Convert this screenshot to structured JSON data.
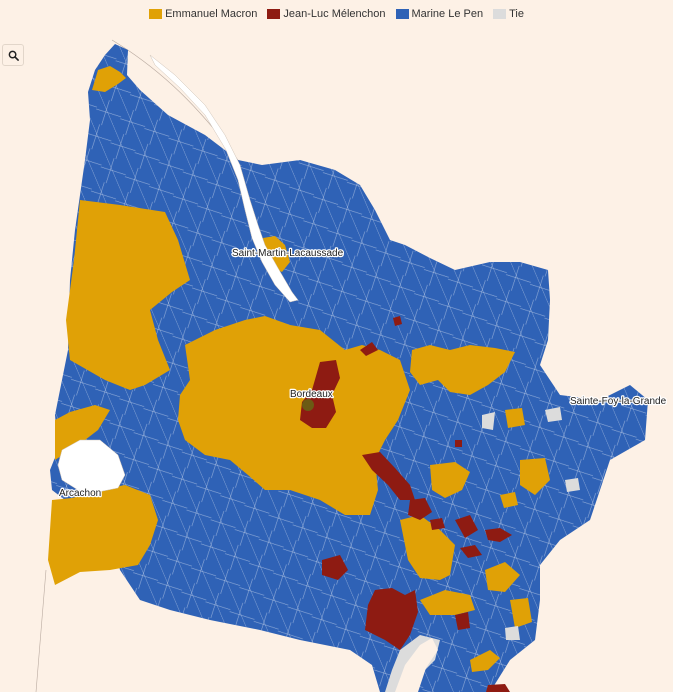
{
  "legend": {
    "items": [
      {
        "label": "Emmanuel Macron",
        "color": "#e0a106"
      },
      {
        "label": "Jean-Luc Mélenchon",
        "color": "#8e1b12"
      },
      {
        "label": "Marine Le Pen",
        "color": "#2f62b6"
      },
      {
        "label": "Tie",
        "color": "#dcdcdc"
      }
    ]
  },
  "search": {
    "icon": "search-icon"
  },
  "cities": {
    "saint_martin": "Saint-Martin-Lacaussade",
    "bordeaux": "Bordeaux",
    "sainte_foy": "Sainte-Foy-la-Grande",
    "arcachon": "Arcachon"
  },
  "colors": {
    "macron": "#e0a106",
    "melenchon": "#8e1b12",
    "lepen": "#2f62b6",
    "tie": "#dcdcdc",
    "background": "#fdf1e6",
    "water": "#ffffff"
  }
}
